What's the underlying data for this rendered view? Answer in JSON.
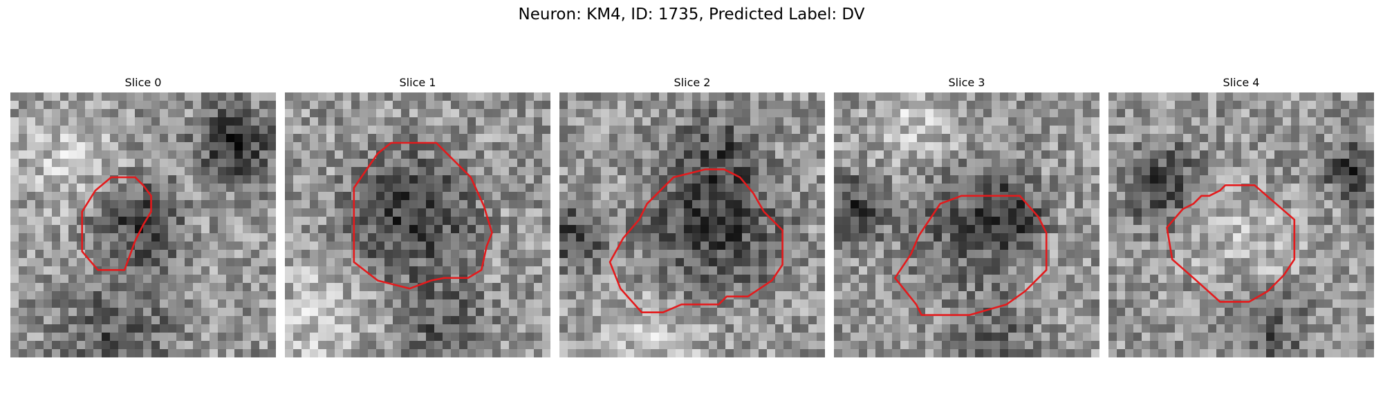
{
  "figure": {
    "title": "Neuron: KM4, ID: 1735, Predicted Label: DV"
  },
  "colors": {
    "roi_outline": "#e41a1c",
    "colormap": "grayscale"
  },
  "panels": [
    {
      "title": "Slice 0"
    },
    {
      "title": "Slice 1"
    },
    {
      "title": "Slice 2"
    },
    {
      "title": "Slice 3"
    },
    {
      "title": "Slice 4"
    }
  ]
}
